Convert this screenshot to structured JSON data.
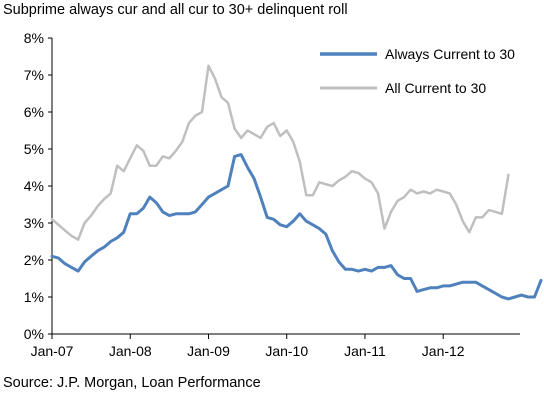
{
  "title": "Subprime always cur and all cur to 30+ delinquent roll",
  "source": "Source: J.P. Morgan, Loan Performance",
  "chart_data": {
    "type": "line",
    "title": "Subprime always cur and all cur to 30+ delinquent roll",
    "xlabel": "",
    "ylabel": "",
    "ylim": [
      0,
      8
    ],
    "yticks": [
      0,
      1,
      2,
      3,
      4,
      5,
      6,
      7,
      8
    ],
    "ytick_labels": [
      "0%",
      "1%",
      "2%",
      "3%",
      "4%",
      "5%",
      "6%",
      "7%",
      "8%"
    ],
    "xtick_labels": [
      "Jan-07",
      "Jan-08",
      "Jan-09",
      "Jan-10",
      "Jan-11",
      "Jan-12"
    ],
    "x_start": "Jan-07",
    "x_frequency": "monthly",
    "legend_position": "top-right",
    "grid": false,
    "series": [
      {
        "name": "Always Current to 30",
        "color": "#4f81bd",
        "values": [
          2.1,
          2.05,
          1.9,
          1.8,
          1.7,
          1.95,
          2.1,
          2.25,
          2.35,
          2.5,
          2.6,
          2.75,
          3.25,
          3.25,
          3.4,
          3.7,
          3.55,
          3.3,
          3.2,
          3.25,
          3.25,
          3.25,
          3.3,
          3.5,
          3.7,
          3.8,
          3.9,
          4.0,
          4.8,
          4.85,
          4.5,
          4.2,
          3.7,
          3.15,
          3.1,
          2.95,
          2.9,
          3.05,
          3.25,
          3.05,
          2.95,
          2.85,
          2.7,
          2.25,
          1.95,
          1.75,
          1.75,
          1.7,
          1.75,
          1.7,
          1.8,
          1.8,
          1.85,
          1.6,
          1.5,
          1.5,
          1.15,
          1.2,
          1.25,
          1.25,
          1.3,
          1.3,
          1.35,
          1.4,
          1.4,
          1.4,
          1.3,
          1.2,
          1.1,
          1.0,
          0.95,
          1.0,
          1.05,
          1.0,
          1.0,
          1.45
        ]
      },
      {
        "name": "All Current to 30",
        "color": "#bfbfbf",
        "values": [
          3.1,
          2.95,
          2.8,
          2.65,
          2.55,
          3.0,
          3.2,
          3.45,
          3.65,
          3.8,
          4.55,
          4.4,
          4.75,
          5.1,
          4.95,
          4.55,
          4.55,
          4.8,
          4.75,
          4.95,
          5.2,
          5.7,
          5.9,
          6.0,
          7.25,
          6.9,
          6.4,
          6.25,
          5.55,
          5.3,
          5.5,
          5.4,
          5.3,
          5.6,
          5.7,
          5.35,
          5.5,
          5.2,
          4.65,
          3.75,
          3.75,
          4.1,
          4.05,
          4.0,
          4.15,
          4.25,
          4.4,
          4.35,
          4.2,
          4.1,
          3.8,
          2.85,
          3.3,
          3.6,
          3.7,
          3.9,
          3.8,
          3.85,
          3.8,
          3.9,
          3.85,
          3.8,
          3.5,
          3.05,
          2.75,
          3.15,
          3.15,
          3.35,
          3.3,
          3.25,
          4.3
        ]
      }
    ]
  }
}
